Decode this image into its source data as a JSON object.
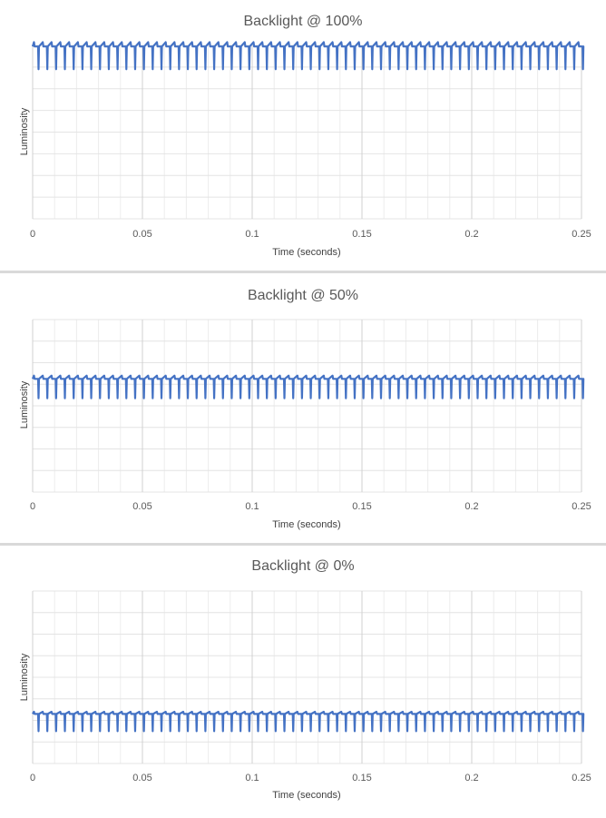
{
  "chart_data": [
    {
      "type": "line",
      "title": "Backlight @ 100%",
      "xlabel": "Time (seconds)",
      "ylabel": "Luminosity",
      "xticks": [
        "0",
        "0.05",
        "0.1",
        "0.15",
        "0.2",
        "0.25"
      ],
      "xlim": [
        0,
        0.25
      ],
      "ylim": [
        0,
        8
      ],
      "grid": true,
      "series": [
        {
          "color": "#4472c4",
          "baseline": 7.95,
          "dip": 6.9,
          "peak": 8.15,
          "pulse_period_s": 0.004
        }
      ]
    },
    {
      "type": "line",
      "title": "Backlight @ 50%",
      "xlabel": "Time (seconds)",
      "ylabel": "Luminosity",
      "xticks": [
        "0",
        "0.05",
        "0.1",
        "0.15",
        "0.2",
        "0.25"
      ],
      "xlim": [
        0,
        0.25
      ],
      "ylim": [
        0,
        8
      ],
      "grid": true,
      "series": [
        {
          "color": "#4472c4",
          "baseline": 5.25,
          "dip": 4.35,
          "peak": 5.4,
          "pulse_period_s": 0.004
        }
      ]
    },
    {
      "type": "line",
      "title": "Backlight @ 0%",
      "xlabel": "Time (seconds)",
      "ylabel": "Luminosity",
      "xticks": [
        "0",
        "0.05",
        "0.1",
        "0.15",
        "0.2",
        "0.25"
      ],
      "xlim": [
        0,
        0.25
      ],
      "ylim": [
        0,
        8
      ],
      "grid": true,
      "series": [
        {
          "color": "#4472c4",
          "baseline": 2.3,
          "dip": 1.5,
          "peak": 2.4,
          "pulse_period_s": 0.004
        }
      ]
    }
  ]
}
